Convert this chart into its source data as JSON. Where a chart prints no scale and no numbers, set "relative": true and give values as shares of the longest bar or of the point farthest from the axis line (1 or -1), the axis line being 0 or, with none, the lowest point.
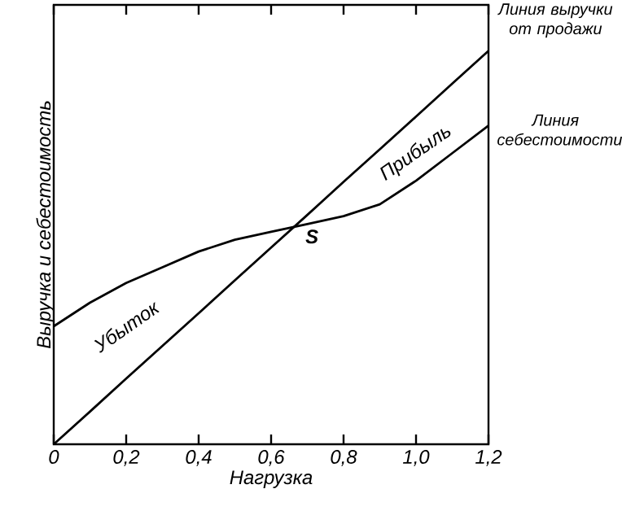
{
  "chart_data": {
    "type": "line",
    "relative": true,
    "xlabel": "Нагрузка",
    "ylabel": "Выручка и себестоимость",
    "x": [
      0,
      0.1,
      0.2,
      0.3,
      0.4,
      0.5,
      0.6,
      0.7,
      0.8,
      0.9,
      1.0,
      1.1,
      1.2
    ],
    "xlim": [
      0,
      1.2
    ],
    "xticks": [
      {
        "value": 0,
        "label": "0"
      },
      {
        "value": 0.2,
        "label": "0,2"
      },
      {
        "value": 0.4,
        "label": "0,4"
      },
      {
        "value": 0.6,
        "label": "0,6"
      },
      {
        "value": 0.8,
        "label": "0,8"
      },
      {
        "value": 1.0,
        "label": "1,0"
      },
      {
        "value": 1.2,
        "label": "1,2"
      }
    ],
    "series": [
      {
        "name": "Линия выручки от продажи",
        "color": "#000000",
        "values": [
          0,
          0.083,
          0.167,
          0.25,
          0.333,
          0.417,
          0.5,
          0.583,
          0.667,
          0.75,
          0.833,
          0.917,
          1.0
        ]
      },
      {
        "name": "Линия себестоимости",
        "color": "#000000",
        "values": [
          0.3,
          0.36,
          0.41,
          0.45,
          0.49,
          0.52,
          0.54,
          0.56,
          0.58,
          0.61,
          0.67,
          0.74,
          0.81
        ]
      }
    ],
    "annotations": [
      {
        "text": "S",
        "x": 0.67,
        "y": 0.56
      },
      "Убыток",
      "Прибыль"
    ],
    "legend": "right",
    "marker": "none",
    "line_style": "solid"
  }
}
